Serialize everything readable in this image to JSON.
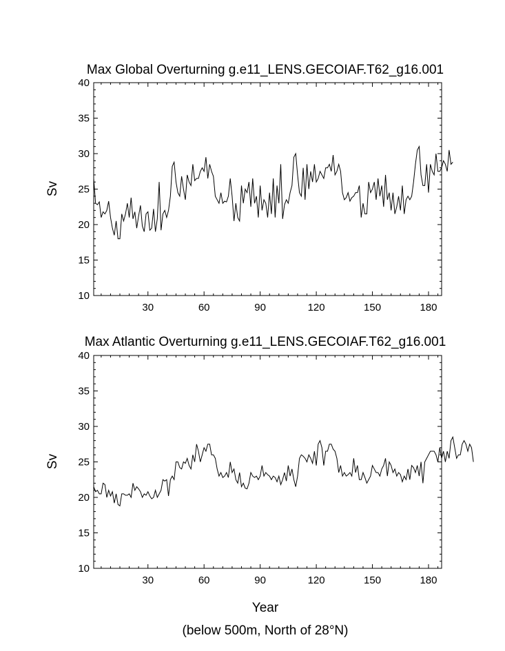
{
  "footer_note": "(below 500m, North of 28°N)",
  "chart_data": [
    {
      "type": "line",
      "title": "Max Global Overturning g.e11_LENS.GECOIAF.T62_g16.001",
      "xlabel": "",
      "ylabel": "Sv",
      "xlim": [
        1,
        187
      ],
      "ylim": [
        10,
        40
      ],
      "xticks": [
        30,
        60,
        90,
        120,
        150,
        180
      ],
      "yticks": [
        10,
        15,
        20,
        25,
        30,
        35,
        40
      ],
      "x_start": 1,
      "x_step": 1,
      "series": [
        {
          "values": [
            26.5,
            23.0,
            22.8,
            23.2,
            21.0,
            21.8,
            21.5,
            22.0,
            23.3,
            21.0,
            19.5,
            18.5,
            20.5,
            18.0,
            18.0,
            21.5,
            20.5,
            21.5,
            23.0,
            21.0,
            23.8,
            20.8,
            21.8,
            19.5,
            21.2,
            22.7,
            19.8,
            19.0,
            21.5,
            21.8,
            19.2,
            19.5,
            22.2,
            19.0,
            20.8,
            26.0,
            19.2,
            21.5,
            22.0,
            21.0,
            22.0,
            24.0,
            28.2,
            28.8,
            26.0,
            24.5,
            24.0,
            26.8,
            25.0,
            23.5,
            27.0,
            26.0,
            25.5,
            28.5,
            26.2,
            26.5,
            26.5,
            27.5,
            28.0,
            27.5,
            29.5,
            26.5,
            28.5,
            27.5,
            26.8,
            24.0,
            23.5,
            23.0,
            24.5,
            23.0,
            23.3,
            23.2,
            24.0,
            26.5,
            24.0,
            20.5,
            23.0,
            21.0,
            20.5,
            25.5,
            23.0,
            25.0,
            24.5,
            26.0,
            22.5,
            26.5,
            23.0,
            24.0,
            21.0,
            25.5,
            22.0,
            23.5,
            23.0,
            21.0,
            24.5,
            21.5,
            26.5,
            21.0,
            25.5,
            23.0,
            28.5,
            20.8,
            22.8,
            23.5,
            23.0,
            24.5,
            25.5,
            29.5,
            30.0,
            27.0,
            24.5,
            24.0,
            28.0,
            23.5,
            28.5,
            25.0,
            27.5,
            26.0,
            28.5,
            26.0,
            26.5,
            27.5,
            27.0,
            26.5,
            28.0,
            28.0,
            28.5,
            27.5,
            29.8,
            27.0,
            27.5,
            28.5,
            27.5,
            24.5,
            23.5,
            23.8,
            24.5,
            23.3,
            23.8,
            24.0,
            24.5,
            24.5,
            25.5,
            21.0,
            23.0,
            21.5,
            21.5,
            26.0,
            24.5,
            25.0,
            26.0,
            23.5,
            26.5,
            24.0,
            25.5,
            22.5,
            27.0,
            23.5,
            24.5,
            22.0,
            24.5,
            21.5,
            22.5,
            24.0,
            22.0,
            25.5,
            21.5,
            23.5,
            24.0,
            23.5,
            24.0,
            26.0,
            28.5,
            30.5,
            31.0,
            27.0,
            25.5,
            25.5,
            28.5,
            24.5,
            28.5,
            27.5,
            27.0,
            30.0,
            27.5,
            27.5,
            28.0,
            29.0,
            28.5,
            27.5,
            30.5,
            28.5,
            28.8
          ]
        }
      ]
    },
    {
      "type": "line",
      "title": "Max Atlantic Overturning g.e11_LENS.GECOIAF.T62_g16.001",
      "xlabel": "Year",
      "ylabel": "Sv",
      "xlim": [
        1,
        187
      ],
      "ylim": [
        10,
        40
      ],
      "xticks": [
        30,
        60,
        90,
        120,
        150,
        180
      ],
      "yticks": [
        10,
        15,
        20,
        25,
        30,
        35,
        40
      ],
      "x_start": 1,
      "x_step": 1,
      "series": [
        {
          "values": [
            21.5,
            20.8,
            21.0,
            20.5,
            20.5,
            22.0,
            21.8,
            20.0,
            21.0,
            20.2,
            20.8,
            19.2,
            20.5,
            19.0,
            18.8,
            20.5,
            20.5,
            20.3,
            20.3,
            20.5,
            20.0,
            22.0,
            21.0,
            21.5,
            21.2,
            20.8,
            20.0,
            20.5,
            20.3,
            20.8,
            20.2,
            19.8,
            20.0,
            21.0,
            20.0,
            20.5,
            21.0,
            22.5,
            22.3,
            22.5,
            20.2,
            22.5,
            23.0,
            22.5,
            25.0,
            25.0,
            24.2,
            24.0,
            25.0,
            24.8,
            25.5,
            24.5,
            24.0,
            26.0,
            25.0,
            27.5,
            26.5,
            25.0,
            26.0,
            27.0,
            26.5,
            27.5,
            27.5,
            26.0,
            26.0,
            25.5,
            24.0,
            23.0,
            23.5,
            22.8,
            23.0,
            23.5,
            22.8,
            25.0,
            23.5,
            24.0,
            22.5,
            22.0,
            23.5,
            21.5,
            22.0,
            21.3,
            21.2,
            22.0,
            23.5,
            23.0,
            22.8,
            23.0,
            22.5,
            23.0,
            24.5,
            23.0,
            23.5,
            23.2,
            23.0,
            22.5,
            23.0,
            22.8,
            22.2,
            23.0,
            21.8,
            22.5,
            23.5,
            22.3,
            24.5,
            23.0,
            24.0,
            22.5,
            21.5,
            23.0,
            25.5,
            26.0,
            25.8,
            25.5,
            25.0,
            26.0,
            25.5,
            24.8,
            26.5,
            24.5,
            27.5,
            28.0,
            27.0,
            24.5,
            26.5,
            26.5,
            27.5,
            27.5,
            26.8,
            26.5,
            25.5,
            23.5,
            24.5,
            23.0,
            23.5,
            23.0,
            23.2,
            23.5,
            23.0,
            25.5,
            23.5,
            24.5,
            22.5,
            22.5,
            23.5,
            22.8,
            22.0,
            22.5,
            23.0,
            24.5,
            24.0,
            23.5,
            23.5,
            23.0,
            24.0,
            24.5,
            25.5,
            23.0,
            25.0,
            24.5,
            23.5,
            24.0,
            23.0,
            23.5,
            23.2,
            22.2,
            23.0,
            22.5,
            24.0,
            22.5,
            24.5,
            24.2,
            23.5,
            24.5,
            23.0,
            25.0,
            22.0,
            25.0,
            25.5,
            26.0,
            26.5,
            26.5,
            26.5,
            26.0,
            25.0,
            27.0,
            25.5,
            26.5,
            25.0,
            26.5,
            25.5,
            28.0,
            28.5,
            27.0,
            25.5,
            26.0,
            26.0,
            27.5,
            28.0,
            27.5,
            26.5,
            27.5,
            27.0,
            25.0
          ]
        }
      ]
    }
  ]
}
